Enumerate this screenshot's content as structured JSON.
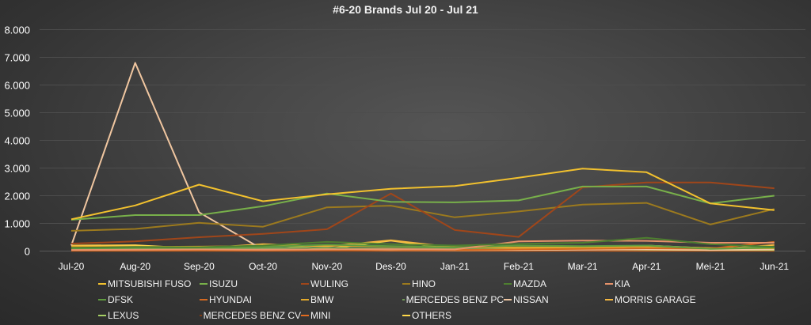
{
  "chart_data": {
    "type": "line",
    "title": "#6-20 Brands Jul 20 - Jul 21",
    "xlabel": "",
    "ylabel": "",
    "ylim": [
      0,
      8000
    ],
    "y_ticks": [
      "0",
      "1.000",
      "2.000",
      "3.000",
      "4.000",
      "5.000",
      "6.000",
      "7.000",
      "8.000"
    ],
    "grid": true,
    "legend_position": "bottom",
    "categories": [
      "Jul-20",
      "Aug-20",
      "Sep-20",
      "Oct-20",
      "Nov-20",
      "Des-20",
      "Jan-21",
      "Feb-21",
      "Mar-21",
      "Apr-21",
      "Mei-21",
      "Jun-21"
    ],
    "series": [
      {
        "name": "MITSUBISHI FUSO",
        "color": "#f2c12e",
        "values": [
          1150,
          1650,
          2400,
          1800,
          2050,
          2250,
          2350,
          2650,
          2980,
          2850,
          1720,
          1480
        ]
      },
      {
        "name": "ISUZU",
        "color": "#78b04a",
        "values": [
          1130,
          1300,
          1300,
          1620,
          2080,
          1780,
          1760,
          1830,
          2330,
          2330,
          1720,
          2000
        ]
      },
      {
        "name": "WULING",
        "color": "#a0461a",
        "values": [
          270,
          350,
          500,
          620,
          790,
          2080,
          760,
          510,
          2300,
          2480,
          2480,
          2270
        ]
      },
      {
        "name": "HINO",
        "color": "#9c7a1e",
        "values": [
          730,
          800,
          1020,
          880,
          1580,
          1640,
          1220,
          1430,
          1680,
          1740,
          960,
          1520
        ]
      },
      {
        "name": "MAZDA",
        "color": "#4e7f30",
        "values": [
          120,
          150,
          140,
          200,
          330,
          250,
          200,
          260,
          300,
          480,
          250,
          150
        ]
      },
      {
        "name": "KIA",
        "color": "#e6926a",
        "values": [
          40,
          50,
          60,
          50,
          60,
          70,
          60,
          350,
          380,
          370,
          300,
          300
        ]
      },
      {
        "name": "DFSK",
        "color": "#5f9b3f",
        "values": [
          100,
          120,
          110,
          150,
          230,
          180,
          130,
          200,
          180,
          200,
          80,
          120
        ]
      },
      {
        "name": "HYUNDAI",
        "color": "#d46a22",
        "values": [
          20,
          20,
          30,
          30,
          40,
          50,
          40,
          60,
          80,
          100,
          90,
          330
        ]
      },
      {
        "name": "BMW",
        "color": "#e3a92b",
        "values": [
          160,
          150,
          160,
          180,
          200,
          170,
          140,
          130,
          120,
          160,
          110,
          100
        ]
      },
      {
        "name": "MERCEDES BENZ PC",
        "color": "#6f9c55",
        "values": [
          80,
          90,
          90,
          110,
          120,
          100,
          90,
          130,
          150,
          200,
          90,
          150
        ]
      },
      {
        "name": "NISSAN",
        "color": "#f0c6a0",
        "values": [
          200,
          6800,
          1400,
          50,
          50,
          40,
          30,
          40,
          50,
          60,
          40,
          60
        ]
      },
      {
        "name": "MORRIS GARAGE",
        "color": "#f5b840",
        "values": [
          180,
          170,
          100,
          250,
          170,
          390,
          130,
          80,
          70,
          90,
          50,
          220
        ]
      },
      {
        "name": "LEXUS",
        "color": "#a6d064",
        "values": [
          50,
          50,
          40,
          60,
          50,
          60,
          40,
          50,
          60,
          50,
          40,
          40
        ]
      },
      {
        "name": "MERCEDES BENZ CV",
        "color": "#7a3a16",
        "values": [
          20,
          20,
          20,
          30,
          20,
          30,
          20,
          30,
          30,
          40,
          30,
          30
        ]
      },
      {
        "name": "MINI",
        "color": "#e36b1f",
        "values": [
          10,
          10,
          10,
          10,
          10,
          10,
          10,
          10,
          10,
          10,
          10,
          10
        ]
      },
      {
        "name": "OTHERS",
        "color": "#ffd84a",
        "values": [
          200,
          210,
          90,
          240,
          80,
          380,
          60,
          30,
          50,
          200,
          100,
          120
        ]
      }
    ]
  }
}
